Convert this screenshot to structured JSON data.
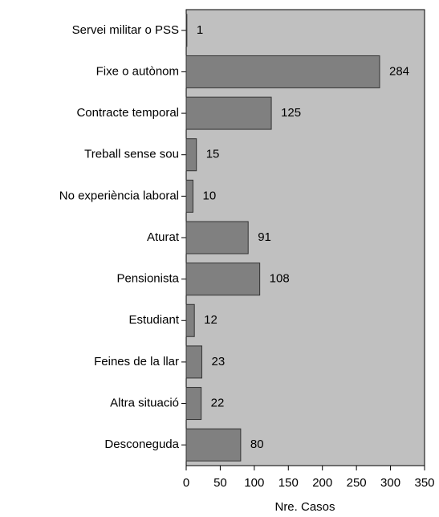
{
  "chart_data": {
    "type": "bar",
    "orientation": "horizontal",
    "categories": [
      "Servei militar o PSS",
      "Fixe o autònom",
      "Contracte temporal",
      "Treball sense sou",
      "No experiència laboral",
      "Aturat",
      "Pensionista",
      "Estudiant",
      "Feines de la llar",
      "Altra situació",
      "Desconeguda"
    ],
    "values": [
      1,
      284,
      125,
      15,
      10,
      91,
      108,
      12,
      23,
      22,
      80
    ],
    "color": "#808080",
    "xlabel": "Nre. Casos",
    "xlim": [
      0,
      350
    ],
    "xticks": [
      0,
      50,
      100,
      150,
      200,
      250,
      300,
      350
    ],
    "grid": false
  }
}
